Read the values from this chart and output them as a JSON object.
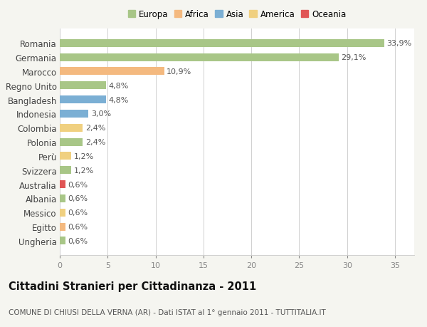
{
  "categories": [
    "Romania",
    "Germania",
    "Marocco",
    "Regno Unito",
    "Bangladesh",
    "Indonesia",
    "Colombia",
    "Polonia",
    "Perù",
    "Svizzera",
    "Australia",
    "Albania",
    "Messico",
    "Egitto",
    "Ungheria"
  ],
  "values": [
    33.9,
    29.1,
    10.9,
    4.8,
    4.8,
    3.0,
    2.4,
    2.4,
    1.2,
    1.2,
    0.6,
    0.6,
    0.6,
    0.6,
    0.6
  ],
  "labels": [
    "33,9%",
    "29,1%",
    "10,9%",
    "4,8%",
    "4,8%",
    "3,0%",
    "2,4%",
    "2,4%",
    "1,2%",
    "1,2%",
    "0,6%",
    "0,6%",
    "0,6%",
    "0,6%",
    "0,6%"
  ],
  "continents": [
    "Europa",
    "Europa",
    "Africa",
    "Europa",
    "Asia",
    "Asia",
    "America",
    "Europa",
    "America",
    "Europa",
    "Oceania",
    "Europa",
    "America",
    "Africa",
    "Europa"
  ],
  "continent_colors": {
    "Europa": "#a8c687",
    "Africa": "#f4b97f",
    "Asia": "#7bafd4",
    "America": "#f0d080",
    "Oceania": "#e05555"
  },
  "legend_order": [
    "Europa",
    "Africa",
    "Asia",
    "America",
    "Oceania"
  ],
  "legend_colors": [
    "#a8c687",
    "#f4b97f",
    "#7bafd4",
    "#f0d080",
    "#e05555"
  ],
  "title": "Cittadini Stranieri per Cittadinanza - 2011",
  "subtitle": "COMUNE DI CHIUSI DELLA VERNA (AR) - Dati ISTAT al 1° gennaio 2011 - TUTTITALIA.IT",
  "xlim": [
    0,
    37
  ],
  "xticks": [
    0,
    5,
    10,
    15,
    20,
    25,
    30,
    35
  ],
  "background_color": "#f5f5f0",
  "plot_background": "#ffffff",
  "grid_color": "#d0d0d0",
  "bar_height": 0.55,
  "label_fontsize": 8,
  "ytick_fontsize": 8.5,
  "xtick_fontsize": 8,
  "title_fontsize": 10.5,
  "subtitle_fontsize": 7.5,
  "legend_fontsize": 8.5
}
